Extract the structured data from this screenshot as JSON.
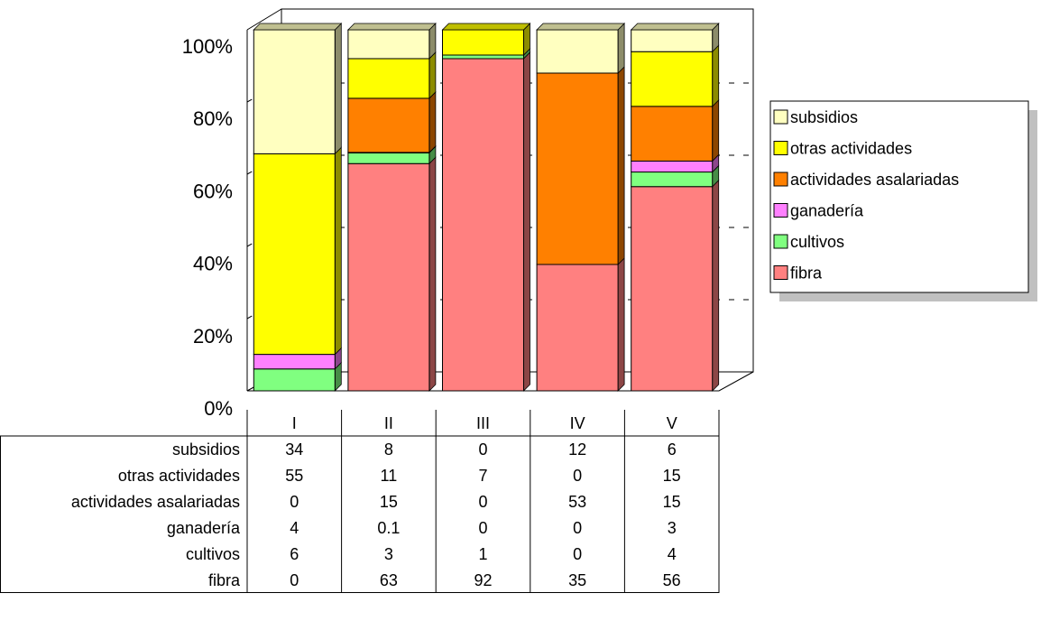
{
  "chart_data": {
    "type": "bar",
    "stacked": "percent",
    "categories": [
      "I",
      "II",
      "III",
      "IV",
      "V"
    ],
    "series": [
      {
        "name": "fibra",
        "color": "#ff8080",
        "values": [
          0,
          63,
          92,
          35,
          56
        ]
      },
      {
        "name": "cultivos",
        "color": "#80ff80",
        "values": [
          6,
          3,
          1,
          0,
          4
        ]
      },
      {
        "name": "ganadería",
        "color": "#ff80ff",
        "values": [
          4,
          0.1,
          0,
          0,
          3
        ]
      },
      {
        "name": "actividades asalariadas",
        "color": "#ff8000",
        "values": [
          0,
          15,
          0,
          53,
          15
        ]
      },
      {
        "name": "otras actividades",
        "color": "#ffff00",
        "values": [
          55,
          11,
          7,
          0,
          15
        ]
      },
      {
        "name": "subsidios",
        "color": "#ffffc0",
        "values": [
          34,
          8,
          0,
          12,
          6
        ]
      }
    ],
    "y_ticks": [
      "0%",
      "20%",
      "40%",
      "60%",
      "80%",
      "100%"
    ],
    "ylim": [
      0,
      100
    ],
    "legend_position": "right",
    "data_table": true,
    "three_d": true
  }
}
